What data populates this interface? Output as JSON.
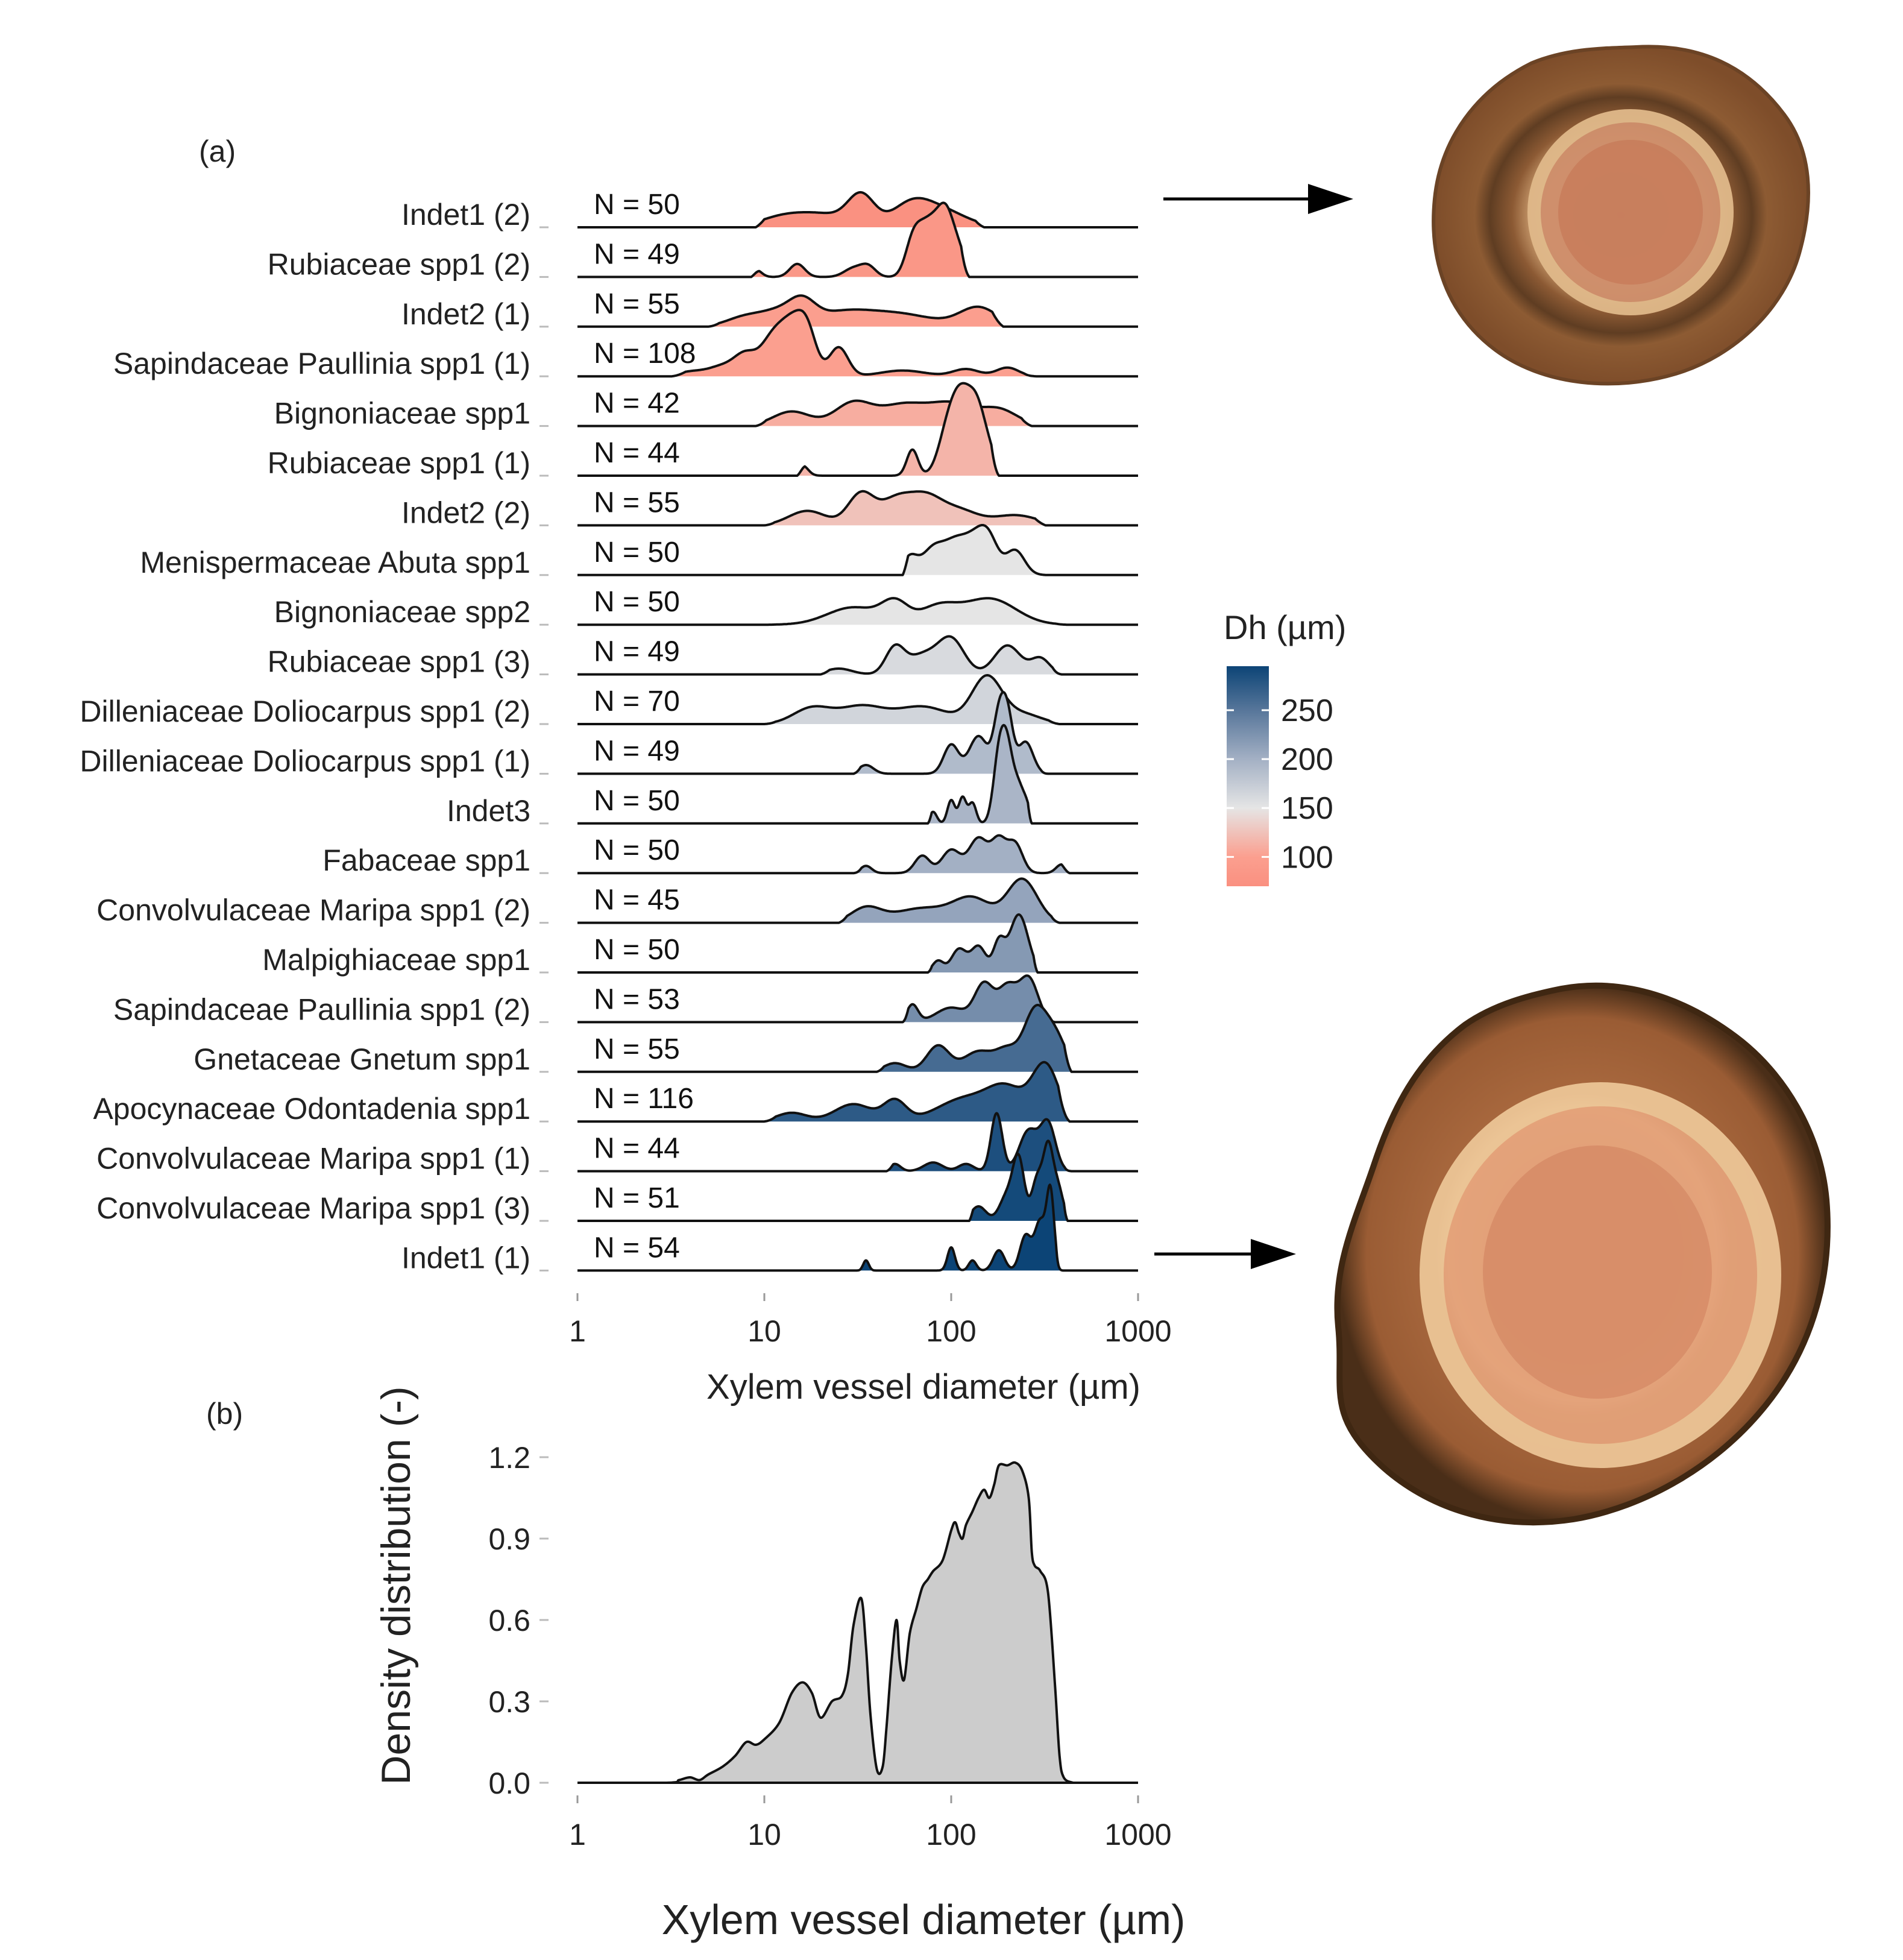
{
  "panels": {
    "a": "(a)",
    "b": "(b)"
  },
  "colorbar": {
    "title": "Dh (µm)",
    "ticks": [
      100,
      150,
      200,
      250
    ],
    "range": [
      70,
      295
    ],
    "stops": [
      {
        "value": 70,
        "color": "#fa9080"
      },
      {
        "value": 100,
        "color": "#fb9f8f"
      },
      {
        "value": 150,
        "color": "#e5e5e5"
      },
      {
        "value": 200,
        "color": "#a3b0c4"
      },
      {
        "value": 250,
        "color": "#57769a"
      },
      {
        "value": 295,
        "color": "#0c4476"
      }
    ]
  },
  "chart_data": [
    {
      "type": "ridgeline",
      "xlabel": "Xylem vessel diameter (µm)",
      "x_scale": "log10",
      "xlim": [
        1,
        1000
      ],
      "xticks": [
        1,
        10,
        100,
        1000
      ],
      "fill_encodes": "Dh (µm)",
      "series": [
        {
          "label": "Indet1 (2)",
          "n": "N = 50",
          "dh": 72,
          "xrange": [
            9,
            150
          ],
          "peaks": [
            [
              33,
              1.0,
              0.07
            ],
            [
              20,
              0.45,
              0.16
            ],
            [
              60,
              0.6,
              0.1
            ],
            [
              85,
              0.62,
              0.14
            ],
            [
              12,
              0.25,
              0.12
            ]
          ]
        },
        {
          "label": "Rubiaceae spp1 (2)",
          "n": "N = 49",
          "dh": 84,
          "xrange": [
            8.5,
            125
          ],
          "peaks": [
            [
              9,
              0.25,
              0.03
            ],
            [
              15,
              0.45,
              0.04
            ],
            [
              30,
              0.3,
              0.05
            ],
            [
              36,
              0.35,
              0.04
            ],
            [
              62,
              1.0,
              0.04
            ],
            [
              72,
              1.3,
              0.05
            ],
            [
              85,
              1.3,
              0.05
            ],
            [
              95,
              1.35,
              0.04
            ],
            [
              110,
              0.8,
              0.04
            ]
          ]
        },
        {
          "label": "Indet2 (1)",
          "n": "N = 55",
          "dh": 98,
          "xrange": [
            5,
            190
          ],
          "peaks": [
            [
              8,
              0.35,
              0.1
            ],
            [
              12,
              0.45,
              0.09
            ],
            [
              16,
              0.7,
              0.07
            ],
            [
              25,
              0.4,
              0.15
            ],
            [
              50,
              0.45,
              0.2
            ],
            [
              140,
              0.65,
              0.1
            ]
          ]
        },
        {
          "label": "Sapindaceae Paullinia spp1 (1)",
          "n": "N = 108",
          "dh": 100,
          "xrange": [
            3.2,
            290
          ],
          "peaks": [
            [
              4,
              0.15,
              0.07
            ],
            [
              6,
              0.35,
              0.08
            ],
            [
              8,
              0.7,
              0.06
            ],
            [
              11,
              1.2,
              0.06
            ],
            [
              14,
              1.6,
              0.06
            ],
            [
              17,
              1.4,
              0.05
            ],
            [
              25,
              1.0,
              0.05
            ],
            [
              55,
              0.2,
              0.12
            ],
            [
              120,
              0.25,
              0.07
            ],
            [
              200,
              0.3,
              0.06
            ]
          ]
        },
        {
          "label": "Bignoniaceae spp1",
          "n": "N = 42",
          "dh": 110,
          "xrange": [
            9,
            270
          ],
          "peaks": [
            [
              14,
              0.5,
              0.1
            ],
            [
              30,
              0.8,
              0.1
            ],
            [
              55,
              0.7,
              0.12
            ],
            [
              100,
              0.75,
              0.12
            ],
            [
              180,
              0.55,
              0.1
            ]
          ]
        },
        {
          "label": "Rubiaceae spp1 (1)",
          "n": "N = 44",
          "dh": 115,
          "xrange": [
            15,
            180
          ],
          "peaks": [
            [
              16,
              0.35,
              0.03
            ],
            [
              62,
              0.9,
              0.03
            ],
            [
              95,
              1.3,
              0.05
            ],
            [
              110,
              1.7,
              0.05
            ],
            [
              125,
              1.5,
              0.05
            ],
            [
              140,
              1.3,
              0.04
            ],
            [
              160,
              0.7,
              0.04
            ]
          ]
        },
        {
          "label": "Indet2 (2)",
          "n": "N = 55",
          "dh": 125,
          "xrange": [
            10,
            320
          ],
          "peaks": [
            [
              17,
              0.5,
              0.1
            ],
            [
              33,
              1.1,
              0.07
            ],
            [
              50,
              0.8,
              0.08
            ],
            [
              72,
              0.95,
              0.09
            ],
            [
              110,
              0.5,
              0.1
            ],
            [
              220,
              0.35,
              0.12
            ]
          ]
        },
        {
          "label": "Menispermaceae Abuta spp1",
          "n": "N = 50",
          "dh": 150,
          "xrange": [
            55,
            330
          ],
          "peaks": [
            [
              60,
              0.6,
              0.04
            ],
            [
              80,
              0.9,
              0.06
            ],
            [
              105,
              1.0,
              0.06
            ],
            [
              135,
              1.1,
              0.06
            ],
            [
              160,
              1.0,
              0.05
            ],
            [
              220,
              0.85,
              0.05
            ]
          ]
        },
        {
          "label": "Bignoniaceae spp2",
          "n": "N = 50",
          "dh": 150,
          "xrange": [
            10,
            420
          ],
          "peaks": [
            [
              30,
              0.6,
              0.14
            ],
            [
              50,
              0.7,
              0.07
            ],
            [
              85,
              0.6,
              0.1
            ],
            [
              160,
              0.9,
              0.14
            ]
          ]
        },
        {
          "label": "Rubiaceae spp1 (3)",
          "n": "N = 49",
          "dh": 160,
          "xrange": [
            20,
            390
          ],
          "peaks": [
            [
              25,
              0.2,
              0.07
            ],
            [
              50,
              0.9,
              0.05
            ],
            [
              70,
              0.65,
              0.08
            ],
            [
              100,
              1.2,
              0.07
            ],
            [
              200,
              1.0,
              0.07
            ],
            [
              300,
              0.55,
              0.05
            ]
          ]
        },
        {
          "label": "Dilleniaceae Doliocarpus spp1 (2)",
          "n": "N = 70",
          "dh": 165,
          "xrange": [
            10,
            380
          ],
          "peaks": [
            [
              18,
              0.55,
              0.1
            ],
            [
              33,
              0.6,
              0.12
            ],
            [
              70,
              0.6,
              0.14
            ],
            [
              155,
              1.6,
              0.08
            ],
            [
              240,
              0.35,
              0.1
            ]
          ]
        },
        {
          "label": "Dilleniaceae Doliocarpus spp1 (1)",
          "n": "N = 49",
          "dh": 190,
          "xrange": [
            30,
            330
          ],
          "peaks": [
            [
              35,
              0.3,
              0.04
            ],
            [
              100,
              1.0,
              0.04
            ],
            [
              140,
              1.3,
              0.05
            ],
            [
              180,
              1.8,
              0.03
            ],
            [
              200,
              1.9,
              0.03
            ],
            [
              250,
              1.1,
              0.04
            ]
          ]
        },
        {
          "label": "Indet3",
          "n": "N = 50",
          "dh": 195,
          "xrange": [
            75,
            270
          ],
          "peaks": [
            [
              80,
              0.4,
              0.02
            ],
            [
              100,
              0.8,
              0.02
            ],
            [
              115,
              0.9,
              0.02
            ],
            [
              130,
              0.7,
              0.02
            ],
            [
              180,
              2.2,
              0.03
            ],
            [
              200,
              2.3,
              0.03
            ],
            [
              230,
              1.2,
              0.03
            ],
            [
              255,
              0.4,
              0.02
            ]
          ]
        },
        {
          "label": "Fabaceae spp1",
          "n": "N = 50",
          "dh": 200,
          "xrange": [
            30,
            430
          ],
          "peaks": [
            [
              35,
              0.25,
              0.03
            ],
            [
              70,
              0.6,
              0.04
            ],
            [
              100,
              0.8,
              0.05
            ],
            [
              140,
              1.2,
              0.05
            ],
            [
              180,
              1.1,
              0.04
            ],
            [
              220,
              1.0,
              0.04
            ],
            [
              390,
              0.3,
              0.03
            ]
          ]
        },
        {
          "label": "Convolvulaceae Maripa spp1 (2)",
          "n": "N = 45",
          "dh": 210,
          "xrange": [
            25,
            380
          ],
          "peaks": [
            [
              35,
              0.5,
              0.08
            ],
            [
              70,
              0.5,
              0.15
            ],
            [
              130,
              0.8,
              0.1
            ],
            [
              240,
              1.5,
              0.08
            ]
          ]
        },
        {
          "label": "Malpighiaceae spp1",
          "n": "N = 50",
          "dh": 220,
          "xrange": [
            75,
            290
          ],
          "peaks": [
            [
              85,
              0.4,
              0.03
            ],
            [
              110,
              0.8,
              0.04
            ],
            [
              140,
              0.9,
              0.04
            ],
            [
              180,
              1.0,
              0.03
            ],
            [
              230,
              2.0,
              0.05
            ]
          ]
        },
        {
          "label": "Sapindaceae Paullinia spp1 (2)",
          "n": "N = 53",
          "dh": 230,
          "xrange": [
            55,
            360
          ],
          "peaks": [
            [
              62,
              0.6,
              0.03
            ],
            [
              100,
              0.5,
              0.08
            ],
            [
              150,
              1.3,
              0.05
            ],
            [
              200,
              1.2,
              0.05
            ],
            [
              260,
              1.5,
              0.05
            ]
          ]
        },
        {
          "label": "Gnetaceae Gnetum spp1",
          "n": "N = 55",
          "dh": 260,
          "xrange": [
            40,
            440
          ],
          "peaks": [
            [
              50,
              0.3,
              0.06
            ],
            [
              85,
              0.9,
              0.06
            ],
            [
              140,
              0.7,
              0.08
            ],
            [
              200,
              0.7,
              0.06
            ],
            [
              280,
              2.0,
              0.06
            ],
            [
              360,
              1.2,
              0.06
            ]
          ]
        },
        {
          "label": "Apocynaceae Odontadenia spp1",
          "n": "N = 116",
          "dh": 275,
          "xrange": [
            10,
            430
          ],
          "peaks": [
            [
              14,
              0.3,
              0.08
            ],
            [
              30,
              0.6,
              0.1
            ],
            [
              50,
              0.7,
              0.06
            ],
            [
              120,
              0.8,
              0.15
            ],
            [
              200,
              1.0,
              0.1
            ],
            [
              320,
              1.9,
              0.07
            ]
          ]
        },
        {
          "label": "Convolvulaceae Maripa spp1 (1)",
          "n": "N = 44",
          "dh": 285,
          "xrange": [
            45,
            440
          ],
          "peaks": [
            [
              50,
              0.25,
              0.03
            ],
            [
              80,
              0.3,
              0.05
            ],
            [
              120,
              0.25,
              0.04
            ],
            [
              175,
              2.0,
              0.03
            ],
            [
              260,
              1.4,
              0.05
            ],
            [
              330,
              1.6,
              0.04
            ]
          ]
        },
        {
          "label": "Convolvulaceae Maripa spp1 (3)",
          "n": "N = 51",
          "dh": 290,
          "xrange": [
            125,
            420
          ],
          "peaks": [
            [
              140,
              0.5,
              0.04
            ],
            [
              200,
              0.9,
              0.04
            ],
            [
              230,
              2.0,
              0.03
            ],
            [
              290,
              1.5,
              0.03
            ],
            [
              330,
              2.2,
              0.025
            ],
            [
              370,
              1.2,
              0.03
            ]
          ]
        },
        {
          "label": "Indet1 (1)",
          "n": "N = 54",
          "dh": 295,
          "xrange": [
            30,
            400
          ],
          "peaks": [
            [
              35,
              0.35,
              0.015
            ],
            [
              100,
              0.8,
              0.02
            ],
            [
              130,
              0.35,
              0.02
            ],
            [
              180,
              0.7,
              0.03
            ],
            [
              250,
              1.2,
              0.03
            ],
            [
              300,
              1.7,
              0.03
            ],
            [
              340,
              2.6,
              0.02
            ]
          ]
        }
      ]
    },
    {
      "type": "area",
      "xlabel": "Xylem vessel diameter (µm)",
      "ylabel": "Density distribution (-)",
      "x_scale": "log10",
      "xlim": [
        1,
        1000
      ],
      "xticks": [
        1,
        10,
        100,
        1000
      ],
      "ylim": [
        0,
        1.2
      ],
      "yticks": [
        0.0,
        0.3,
        0.6,
        0.9,
        1.2
      ],
      "x": [
        1,
        3,
        3.5,
        4,
        4.5,
        5,
        6,
        7,
        8,
        9,
        10,
        12,
        14,
        16,
        18,
        20,
        23,
        26,
        28,
        30,
        33,
        35,
        37,
        40,
        43,
        45,
        48,
        51,
        53,
        56,
        60,
        65,
        70,
        75,
        80,
        90,
        100,
        105,
        110,
        115,
        120,
        130,
        140,
        150,
        160,
        170,
        180,
        200,
        220,
        240,
        260,
        270,
        280,
        300,
        330,
        360,
        380,
        400,
        450,
        500,
        1000
      ],
      "y": [
        0,
        0,
        0.01,
        0.02,
        0.01,
        0.03,
        0.06,
        0.1,
        0.15,
        0.14,
        0.16,
        0.22,
        0.33,
        0.37,
        0.33,
        0.24,
        0.3,
        0.32,
        0.4,
        0.58,
        0.68,
        0.5,
        0.25,
        0.05,
        0.06,
        0.2,
        0.45,
        0.6,
        0.45,
        0.38,
        0.55,
        0.64,
        0.72,
        0.75,
        0.78,
        0.82,
        0.93,
        0.96,
        0.92,
        0.9,
        0.95,
        1.0,
        1.05,
        1.08,
        1.05,
        1.1,
        1.17,
        1.17,
        1.18,
        1.15,
        1.05,
        0.85,
        0.8,
        0.78,
        0.7,
        0.35,
        0.1,
        0.02,
        0,
        0,
        0
      ]
    }
  ]
}
